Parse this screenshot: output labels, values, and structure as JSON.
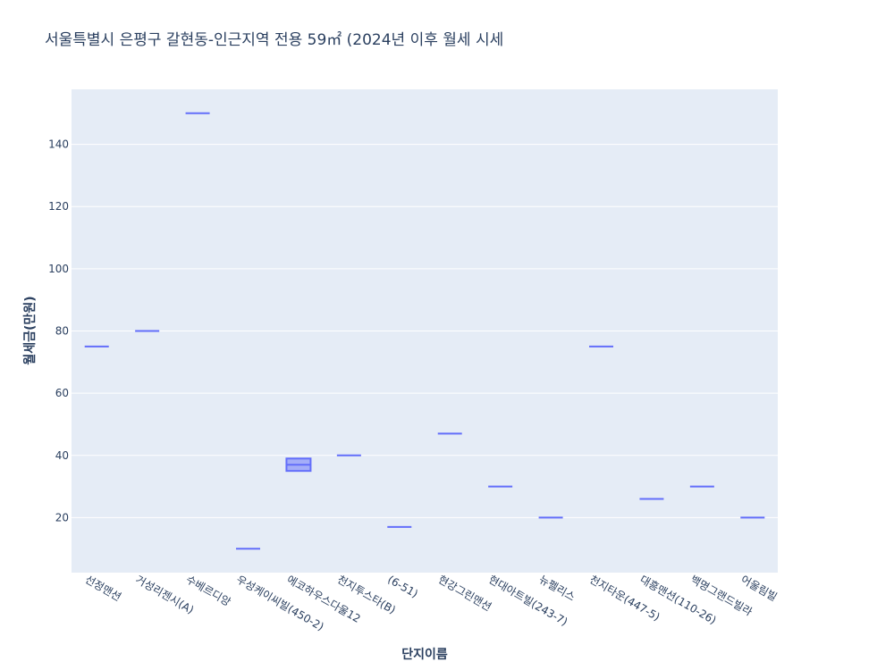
{
  "chart_data": {
    "type": "box",
    "title": "서울특별시 은평구 갈현동-인근지역 전용 59㎡ (2024년 이후 월세 시세",
    "xlabel": "단지이름",
    "ylabel": "월세금(만원)",
    "ylim": [
      2.3,
      157.7
    ],
    "yticks": [
      20,
      40,
      60,
      80,
      100,
      120,
      140
    ],
    "grid": true,
    "colors": {
      "plot_bg": "#e5ecf6",
      "box_line": "#636efa",
      "box_fill": "#636efa",
      "grid": "#ffffff",
      "text": "#2a3f5f"
    },
    "categories": [
      "선정맨션",
      "거성리젠시(A)",
      "수베르디앙",
      "우성케이씨빌(450-2)",
      "에코하우스다울12",
      "천지투스타(B)",
      "(6-51)",
      "현강그린맨션",
      "현대아트빌(243-7)",
      "뉴펠리스",
      "천지타운(447-5)",
      "대흥맨션(110-26)",
      "백명그랜드빌라",
      "어울림빌"
    ],
    "boxes": [
      {
        "q1": 75,
        "median": 75,
        "q3": 75
      },
      {
        "q1": 80,
        "median": 80,
        "q3": 80
      },
      {
        "q1": 150,
        "median": 150,
        "q3": 150
      },
      {
        "q1": 10,
        "median": 10,
        "q3": 10
      },
      {
        "q1": 35,
        "median": 37,
        "q3": 39
      },
      {
        "q1": 40,
        "median": 40,
        "q3": 40
      },
      {
        "q1": 17,
        "median": 17,
        "q3": 17
      },
      {
        "q1": 47,
        "median": 47,
        "q3": 47
      },
      {
        "q1": 30,
        "median": 30,
        "q3": 30
      },
      {
        "q1": 20,
        "median": 20,
        "q3": 20
      },
      {
        "q1": 75,
        "median": 75,
        "q3": 75
      },
      {
        "q1": 26,
        "median": 26,
        "q3": 26
      },
      {
        "q1": 30,
        "median": 30,
        "q3": 30
      },
      {
        "q1": 20,
        "median": 20,
        "q3": 20
      }
    ]
  }
}
